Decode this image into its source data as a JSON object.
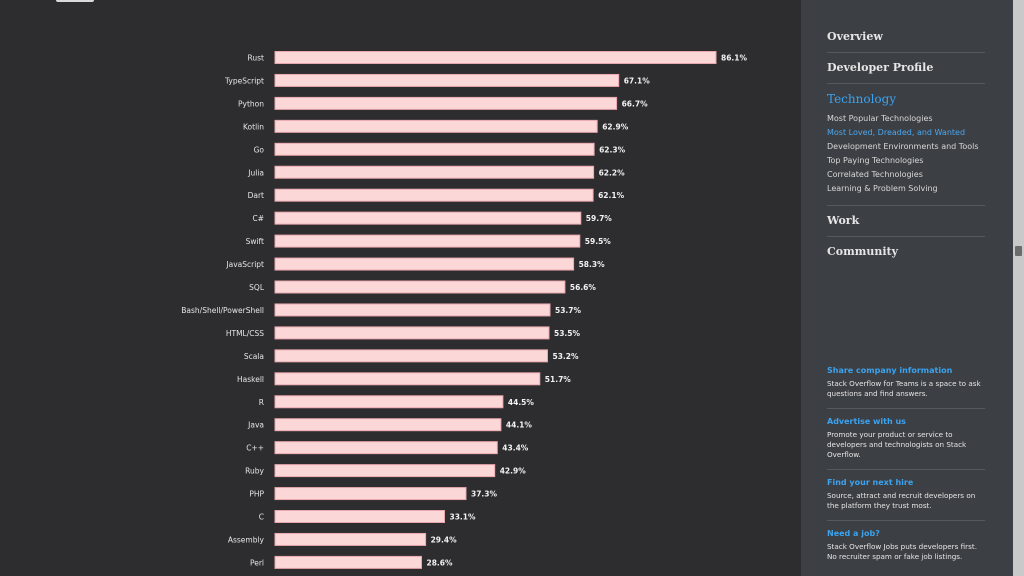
{
  "chart_data": {
    "type": "bar",
    "orientation": "horizontal",
    "categories": [
      "Rust",
      "TypeScript",
      "Python",
      "Kotlin",
      "Go",
      "Julia",
      "Dart",
      "C#",
      "Swift",
      "JavaScript",
      "SQL",
      "Bash/Shell/PowerShell",
      "HTML/CSS",
      "Scala",
      "Haskell",
      "R",
      "Java",
      "C++",
      "Ruby",
      "PHP",
      "C",
      "Assembly",
      "Perl"
    ],
    "values": [
      86.1,
      67.1,
      66.7,
      62.9,
      62.3,
      62.2,
      62.1,
      59.7,
      59.5,
      58.3,
      56.6,
      53.7,
      53.5,
      53.2,
      51.7,
      44.5,
      44.1,
      43.4,
      42.9,
      37.3,
      33.1,
      29.4,
      28.6
    ],
    "value_suffix": "%",
    "xlim": [
      0,
      100
    ],
    "grid": false,
    "legend": "none",
    "title": "",
    "xlabel": "",
    "ylabel": "",
    "bar_color": "#fcd7d7",
    "bar_border_color": "#e8a7ad"
  },
  "sidebar": {
    "nav": [
      {
        "label": "Overview",
        "active": false,
        "children": []
      },
      {
        "label": "Developer Profile",
        "active": false,
        "children": []
      },
      {
        "label": "Technology",
        "active": true,
        "children": [
          {
            "label": "Most Popular Technologies",
            "active": false
          },
          {
            "label": "Most Loved, Dreaded, and Wanted",
            "active": true
          },
          {
            "label": "Development Environments and Tools",
            "active": false
          },
          {
            "label": "Top Paying Technologies",
            "active": false
          },
          {
            "label": "Correlated Technologies",
            "active": false
          },
          {
            "label": "Learning & Problem Solving",
            "active": false
          }
        ]
      },
      {
        "label": "Work",
        "active": false,
        "children": []
      },
      {
        "label": "Community",
        "active": false,
        "children": []
      }
    ],
    "promos": [
      {
        "title": "Share company information",
        "text": "Stack Overflow for Teams is a space to ask questions and find answers."
      },
      {
        "title": "Advertise with us",
        "text": "Promote your product or service to developers and technologists on Stack Overflow."
      },
      {
        "title": "Find your next hire",
        "text": "Source, attract and recruit developers on the platform they trust most."
      },
      {
        "title": "Need a job?",
        "text": "Stack Overflow Jobs puts developers first. No recruiter spam or fake job listings."
      }
    ]
  },
  "colors": {
    "background": "#2d2d30",
    "sidebar_background": "#3c3f44",
    "link_blue": "#3ba3f0"
  }
}
